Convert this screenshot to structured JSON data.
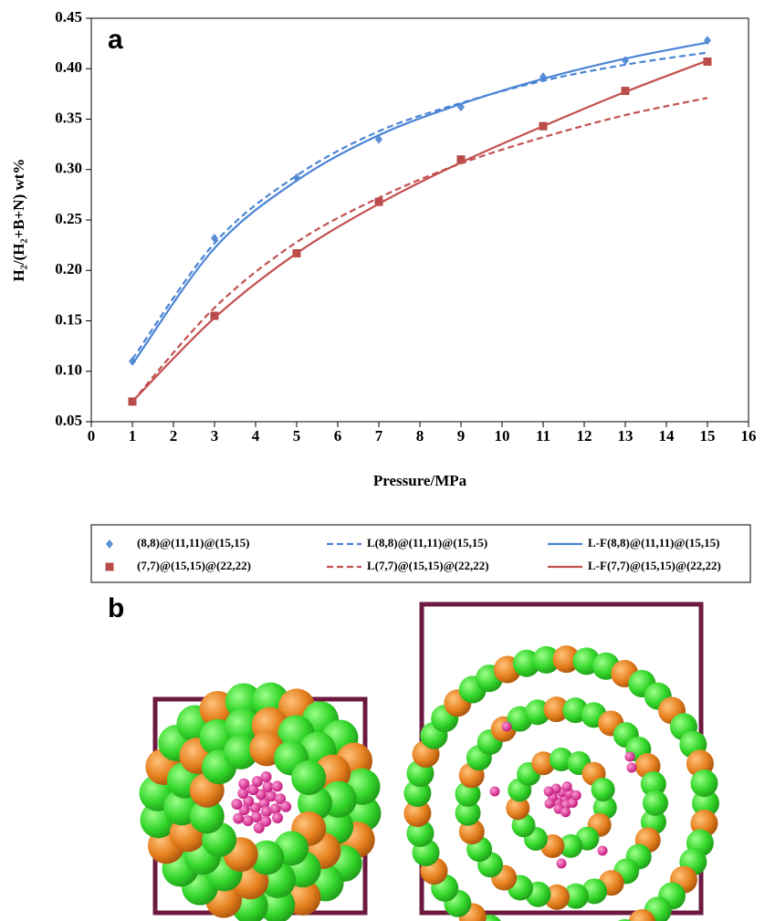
{
  "chart_data": {
    "type": "line",
    "panel_label": "a",
    "x_label": "Pressure/MPa",
    "y_label": "H₂/(H₂+B+N) wt%",
    "x": [
      1,
      3,
      5,
      7,
      9,
      11,
      13,
      15
    ],
    "series": [
      {
        "name": "(8,8)@(11,11)@(15,15)",
        "color": "#5b8fd6",
        "marker": "diamond",
        "line_style": "none",
        "values": [
          0.11,
          0.232,
          0.292,
          0.33,
          0.362,
          0.392,
          0.408,
          0.428
        ]
      },
      {
        "name": "(7,7)@(15,15)@(22,22)",
        "color": "#b84a48",
        "marker": "square",
        "line_style": "none",
        "values": [
          0.07,
          0.155,
          0.217,
          0.268,
          0.31,
          0.343,
          0.378,
          0.407
        ]
      },
      {
        "name": "L(8,8)@(11,11)@(15,15)",
        "color": "#4a84d6",
        "marker": "none",
        "line_style": "dashed",
        "values": [
          0.112,
          0.227,
          0.294,
          0.338,
          0.366,
          0.388,
          0.404,
          0.416
        ]
      },
      {
        "name": "L(7,7)@(15,15)@(22,22)",
        "color": "#c2504e",
        "marker": "none",
        "line_style": "dashed",
        "values": [
          0.07,
          0.163,
          0.228,
          0.272,
          0.306,
          0.332,
          0.354,
          0.371
        ]
      },
      {
        "name": "L-F(8,8)@(11,11)@(15,15)",
        "color": "#4a84d6",
        "marker": "none",
        "line_style": "solid",
        "values": [
          0.107,
          0.222,
          0.289,
          0.334,
          0.365,
          0.39,
          0.41,
          0.426
        ]
      },
      {
        "name": "L-F(7,7)@(15,15)@(22,22)",
        "color": "#c2504e",
        "marker": "none",
        "line_style": "solid",
        "values": [
          0.07,
          0.153,
          0.217,
          0.266,
          0.307,
          0.343,
          0.377,
          0.408
        ]
      }
    ],
    "xlim": [
      0,
      16
    ],
    "xticks": [
      0,
      1,
      2,
      3,
      4,
      5,
      6,
      7,
      8,
      9,
      10,
      11,
      12,
      13,
      14,
      15,
      16
    ],
    "ylim": [
      0.05,
      0.45
    ],
    "yticks": [
      0.05,
      {
        "value": 0.1,
        "label": "0.10"
      },
      0.15,
      {
        "value": 0.2,
        "label": "0.20"
      },
      0.25,
      {
        "value": 0.3,
        "label": "0.30"
      },
      0.35,
      {
        "value": 0.4,
        "label": "0.40"
      },
      0.45
    ],
    "legend": "bottom"
  },
  "panel_b": {
    "label": "b"
  }
}
